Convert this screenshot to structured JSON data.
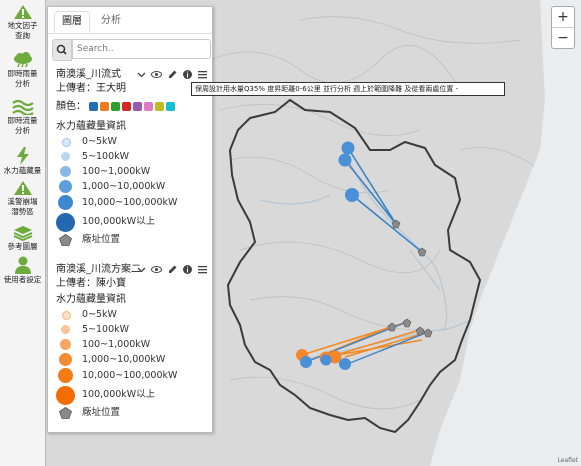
{
  "toolbar": {
    "items": [
      {
        "label1": "地文因子",
        "label2": "查詢",
        "icon": "warning-triangle-icon"
      },
      {
        "label1": "即時雨量",
        "label2": "分析",
        "icon": "rain-cloud-icon"
      },
      {
        "label1": "即時流量",
        "label2": "分析",
        "icon": "water-wave-icon"
      },
      {
        "label1": "水力蘊藏量",
        "label2": "",
        "icon": "lightning-icon"
      },
      {
        "label1": "溪警崩塌",
        "label2": "潛勢區",
        "icon": "alert-triangle-icon"
      },
      {
        "label1": "參考圖層",
        "label2": "",
        "icon": "layers-icon"
      },
      {
        "label1": "使用者設定",
        "label2": "",
        "icon": "user-icon"
      }
    ]
  },
  "panel": {
    "tabs": [
      "圖層",
      "分析"
    ],
    "search_placeholder": "Search..",
    "layer1": {
      "title": "南澳溪_川流式",
      "uploader": "上傳者：王大明",
      "color_label": "顏色：",
      "colors": [
        "#1f6fb5",
        "#f07b1b",
        "#2ca02c",
        "#d62728",
        "#9b59b6",
        "#e377c2",
        "#bcbd22",
        "#17becf"
      ],
      "legend_title": "水力蘊藏量資訊",
      "legend": [
        "0~5kW",
        "5~100kW",
        "100~1,000kW",
        "1,000~10,000kW",
        "10,000~100,000kW",
        "100,000kW以上"
      ],
      "plant_label": "廠址位置"
    },
    "layer2": {
      "title": "南澳溪_川流方案二",
      "uploader": "上傳者：陳小寶",
      "legend_title": "水力蘊藏量資訊",
      "legend": [
        "0~5kW",
        "5~100kW",
        "100~1,000kW",
        "1,000~10,000kW",
        "10,000~100,000kW",
        "100,000kW以上"
      ],
      "plant_label": "廠址位置"
    }
  },
  "tooltip": "保周設計用水量Q35%  度昇距離0-6公里  並行分析  週上於範圍降難  及從看兩處位置 -",
  "colors": {
    "blue": "#4a90d9",
    "orange": "#f5872a",
    "gray": "#8a8a8a"
  },
  "zoom": {
    "in": "+",
    "out": "−"
  },
  "attribution": "Leaflet"
}
